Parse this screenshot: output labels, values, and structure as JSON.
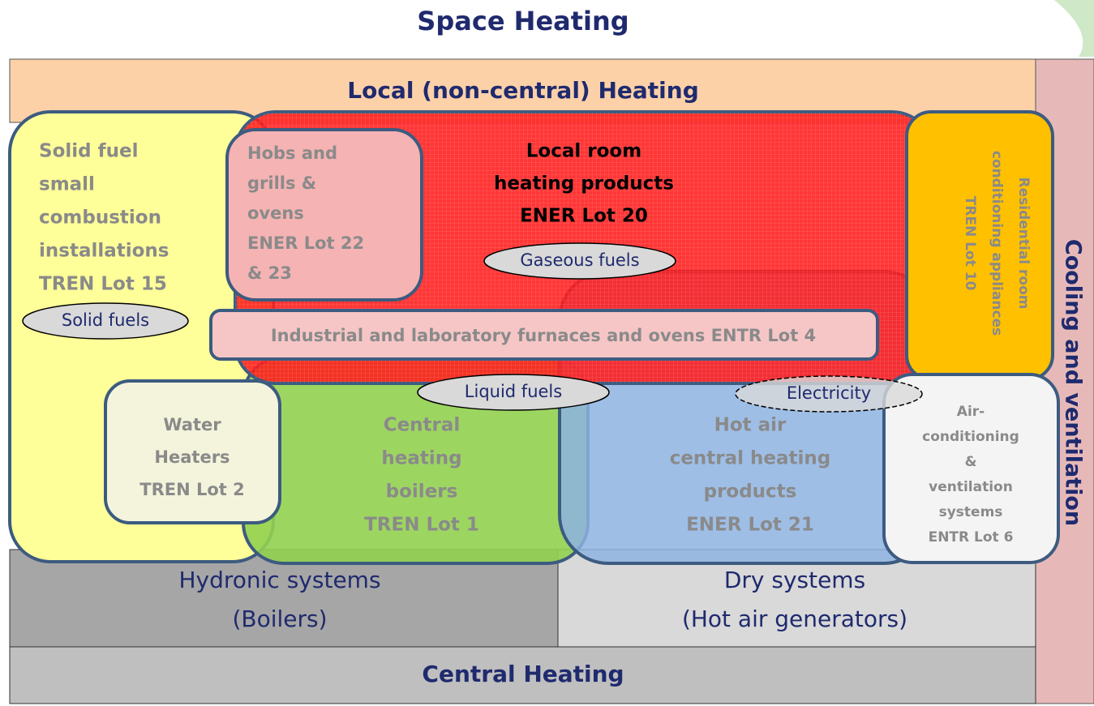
{
  "title": "Space Heating",
  "bands": {
    "local": "Local (non-central) Heating",
    "cooling": "Cooling and ventilation",
    "central": "Central Heating"
  },
  "systems": [
    {
      "lines": [
        "Hydronic systems",
        "(Boilers)"
      ]
    },
    {
      "lines": [
        "Dry systems",
        "(Hot air generators)"
      ]
    }
  ],
  "boxes": [
    {
      "lines": [
        "Solid fuel",
        "small",
        "combustion",
        "installations",
        "TREN Lot 15"
      ]
    },
    {
      "lines": [
        "Local room",
        "heating products",
        "ENER Lot 20"
      ]
    },
    {
      "lines": [
        "Hobs and",
        "grills &",
        "ovens",
        "ENER Lot 22",
        "& 23"
      ]
    },
    {
      "lines": [
        "Residential room",
        "conditioning appliances",
        "TREN Lot 10"
      ]
    },
    {
      "lines": [
        "Industrial and laboratory furnaces and ovens ENTR Lot 4"
      ]
    },
    {
      "lines": [
        "Central",
        "heating",
        "boilers",
        "TREN Lot 1"
      ]
    },
    {
      "lines": [
        "Hot air",
        "central heating",
        "products",
        "ENER Lot 21"
      ]
    },
    {
      "lines": [
        "Water",
        "Heaters",
        "TREN Lot 2"
      ]
    },
    {
      "lines": [
        "Air-",
        "conditioning",
        "&",
        "ventilation",
        "systems",
        "ENTR Lot 6"
      ]
    }
  ],
  "fuels": [
    "Gaseous fuels",
    "Solid fuels",
    "Liquid fuels",
    "Electricity"
  ]
}
